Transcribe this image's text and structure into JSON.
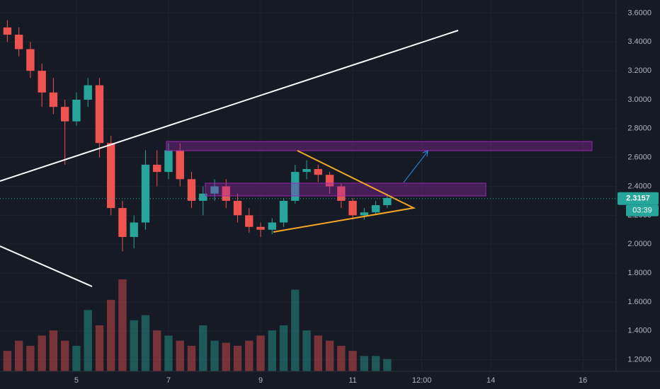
{
  "chart_data": {
    "type": "candlestick",
    "x": [
      3.5,
      3.75,
      4,
      4.25,
      4.5,
      4.75,
      5,
      5.25,
      5.5,
      5.75,
      6,
      6.25,
      6.5,
      6.75,
      7,
      7.25,
      7.5,
      7.75,
      8,
      8.25,
      8.5,
      8.75,
      9,
      9.25,
      9.5,
      9.75,
      10,
      10.25,
      10.5,
      10.75,
      11,
      11.25,
      11.5,
      11.75
    ],
    "open": [
      3.5,
      3.45,
      3.35,
      3.2,
      3.05,
      2.95,
      2.85,
      3.0,
      3.1,
      2.7,
      2.25,
      2.05,
      2.15,
      2.55,
      2.5,
      2.65,
      2.45,
      2.3,
      2.35,
      2.4,
      2.3,
      2.2,
      2.12,
      2.1,
      2.15,
      2.3,
      2.5,
      2.52,
      2.48,
      2.4,
      2.3,
      2.2,
      2.22,
      2.27
    ],
    "high": [
      3.55,
      3.5,
      3.4,
      3.25,
      3.15,
      3.0,
      3.05,
      3.15,
      3.15,
      2.75,
      2.3,
      2.2,
      2.65,
      2.65,
      2.7,
      2.7,
      2.5,
      2.4,
      2.45,
      2.45,
      2.35,
      2.25,
      2.15,
      2.18,
      2.32,
      2.55,
      2.58,
      2.55,
      2.5,
      2.42,
      2.32,
      2.25,
      2.3,
      2.35
    ],
    "low": [
      3.4,
      3.3,
      3.15,
      2.95,
      2.9,
      2.55,
      2.82,
      2.95,
      2.6,
      2.2,
      1.95,
      1.97,
      2.1,
      2.4,
      2.45,
      2.4,
      2.25,
      2.2,
      2.3,
      2.25,
      2.15,
      2.08,
      2.05,
      2.07,
      2.12,
      2.28,
      2.45,
      2.43,
      2.35,
      2.25,
      2.17,
      2.17,
      2.2,
      2.25
    ],
    "close": [
      3.45,
      3.35,
      3.2,
      3.05,
      2.95,
      2.85,
      3.0,
      3.1,
      2.7,
      2.25,
      2.05,
      2.15,
      2.55,
      2.5,
      2.65,
      2.45,
      2.3,
      2.35,
      2.4,
      2.3,
      2.2,
      2.12,
      2.1,
      2.15,
      2.3,
      2.5,
      2.52,
      2.48,
      2.4,
      2.3,
      2.2,
      2.22,
      2.27,
      2.32
    ],
    "volume": [
      20,
      30,
      25,
      35,
      40,
      30,
      25,
      60,
      45,
      70,
      90,
      50,
      55,
      40,
      35,
      30,
      25,
      45,
      30,
      28,
      25,
      30,
      35,
      40,
      45,
      80,
      40,
      35,
      30,
      25,
      20,
      15,
      15,
      12
    ],
    "up_color": "#26a69a",
    "down_color": "#ef5350",
    "xlim": [
      3.34,
      16.72
    ],
    "xticks": [
      5,
      7,
      9,
      11,
      {
        "value": 12.5,
        "label": "12:00"
      },
      14,
      16
    ],
    "ylim": [
      1.12,
      3.69
    ],
    "yticks": [
      {
        "value": 1.2,
        "label": "1.2000"
      },
      {
        "value": 1.4,
        "label": "1.4000"
      },
      {
        "value": 1.6,
        "label": "1.6000"
      },
      {
        "value": 1.8,
        "label": "1.8000"
      },
      {
        "value": 2.0,
        "label": "2.0000"
      },
      {
        "value": 2.2,
        "label": "2.2000"
      },
      {
        "value": 2.4,
        "label": "2.4000"
      },
      {
        "value": 2.6,
        "label": "2.6000"
      },
      {
        "value": 2.8,
        "label": "2.8000"
      },
      {
        "value": 3.0,
        "label": "3.0000"
      },
      {
        "value": 3.2,
        "label": "3.2000"
      },
      {
        "value": 3.4,
        "label": "3.4000"
      },
      {
        "value": 3.6,
        "label": "3.6000"
      }
    ],
    "last_price": 2.3157,
    "countdown": "03:39",
    "grid": true
  }
}
